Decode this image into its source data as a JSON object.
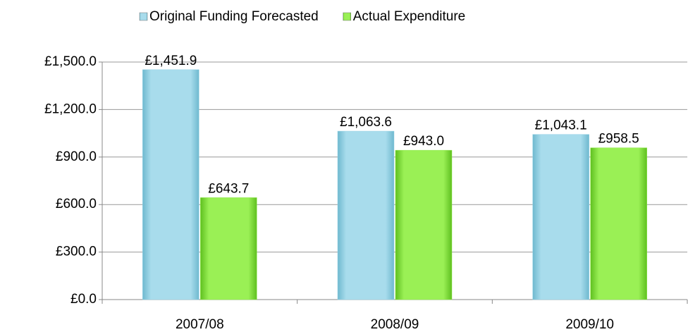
{
  "chart_data": {
    "type": "bar",
    "categories": [
      "2007/08",
      "2008/09",
      "2009/10"
    ],
    "series": [
      {
        "name": "Original Funding Forecasted",
        "color": "#9ad4e6",
        "values": [
          1451.9,
          1063.6,
          1043.1
        ],
        "value_labels": [
          "£1,451.9",
          "£1,063.6",
          "£1,043.1"
        ]
      },
      {
        "name": "Actual Expenditure",
        "color": "#8ee84a",
        "values": [
          643.7,
          943.0,
          958.5
        ],
        "value_labels": [
          "£643.7",
          "£943.0",
          "£958.5"
        ]
      }
    ],
    "ylim": [
      0,
      1500
    ],
    "yticks": [
      {
        "value": 0,
        "label": "£0.0"
      },
      {
        "value": 300,
        "label": "£300.0"
      },
      {
        "value": 600,
        "label": "£600.0"
      },
      {
        "value": 900,
        "label": "£900.0"
      },
      {
        "value": 1200,
        "label": "£1,200.0"
      },
      {
        "value": 1500,
        "label": "£1,500.0"
      }
    ],
    "grid": true,
    "legend": "top"
  }
}
